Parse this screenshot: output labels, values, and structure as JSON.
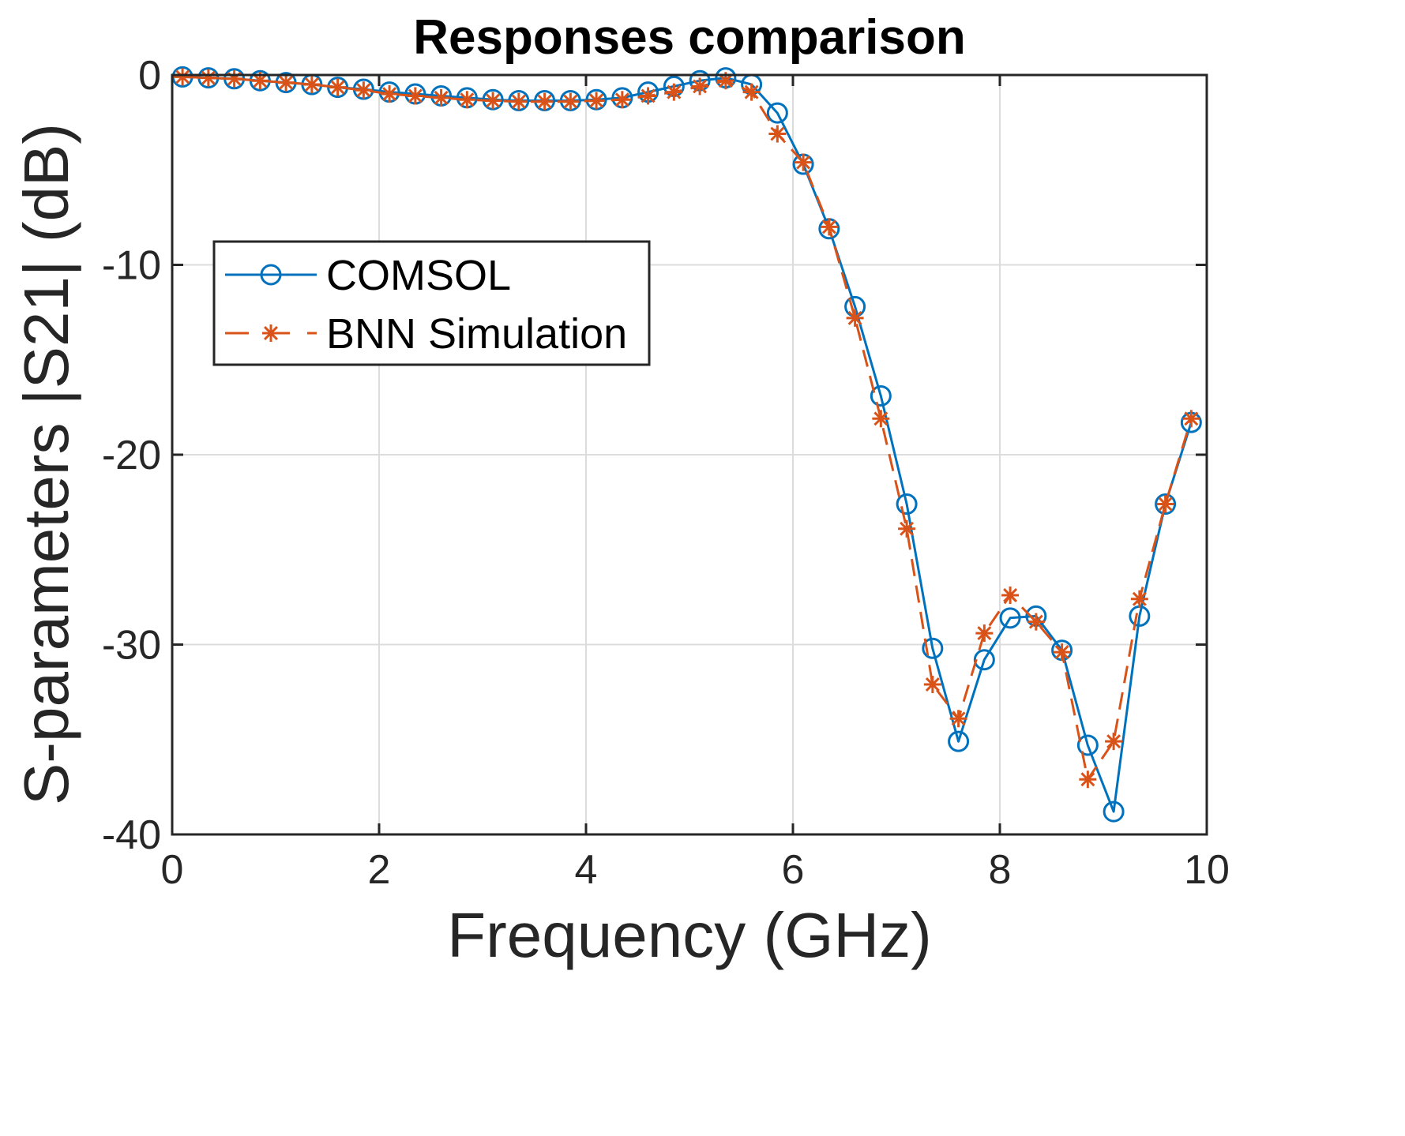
{
  "chart_data": {
    "type": "line",
    "title": "Responses comparison",
    "xlabel": "Frequency (GHz)",
    "ylabel": "S-parameters |S21| (dB)",
    "xlim": [
      0,
      10
    ],
    "ylim": [
      -40,
      0
    ],
    "xticks": [
      0,
      2,
      4,
      6,
      8,
      10
    ],
    "yticks": [
      0,
      -10,
      -20,
      -30,
      -40
    ],
    "xtick_labels": [
      "0",
      "2",
      "4",
      "6",
      "8",
      "10"
    ],
    "ytick_labels": [
      "0",
      "-10",
      "-20",
      "-30",
      "-40"
    ],
    "grid": true,
    "legend_position": "center-left",
    "x": [
      0.1,
      0.35,
      0.6,
      0.85,
      1.1,
      1.35,
      1.6,
      1.85,
      2.1,
      2.35,
      2.6,
      2.85,
      3.1,
      3.35,
      3.6,
      3.85,
      4.1,
      4.35,
      4.6,
      4.85,
      5.1,
      5.35,
      5.6,
      5.85,
      6.1,
      6.35,
      6.6,
      6.85,
      7.1,
      7.35,
      7.6,
      7.85,
      8.1,
      8.35,
      8.6,
      8.85,
      9.1,
      9.35,
      9.6,
      9.85
    ],
    "series": [
      {
        "name": "COMSOL",
        "color": "#0072BD",
        "marker": "circle",
        "line_style": "solid",
        "values": [
          -0.1,
          -0.15,
          -0.2,
          -0.3,
          -0.4,
          -0.5,
          -0.65,
          -0.75,
          -0.9,
          -1.0,
          -1.1,
          -1.2,
          -1.3,
          -1.35,
          -1.35,
          -1.35,
          -1.3,
          -1.2,
          -0.9,
          -0.6,
          -0.3,
          -0.15,
          -0.5,
          -2.0,
          -4.7,
          -8.1,
          -12.2,
          -16.9,
          -22.6,
          -30.2,
          -35.1,
          -30.8,
          -28.6,
          -28.5,
          -30.3,
          -35.3,
          -38.8,
          -28.5,
          -22.6,
          -18.3
        ]
      },
      {
        "name": "BNN Simulation",
        "color": "#D95319",
        "marker": "asterisk",
        "line_style": "dashed",
        "values": [
          -0.1,
          -0.15,
          -0.2,
          -0.3,
          -0.4,
          -0.5,
          -0.65,
          -0.8,
          -1.0,
          -1.1,
          -1.2,
          -1.3,
          -1.35,
          -1.4,
          -1.4,
          -1.4,
          -1.35,
          -1.3,
          -1.1,
          -0.9,
          -0.6,
          -0.3,
          -0.9,
          -3.1,
          -4.6,
          -8.0,
          -12.8,
          -18.1,
          -23.9,
          -32.1,
          -33.9,
          -29.4,
          -27.4,
          -28.8,
          -30.4,
          -37.1,
          -35.1,
          -27.6,
          -22.6,
          -18.1
        ]
      }
    ]
  }
}
